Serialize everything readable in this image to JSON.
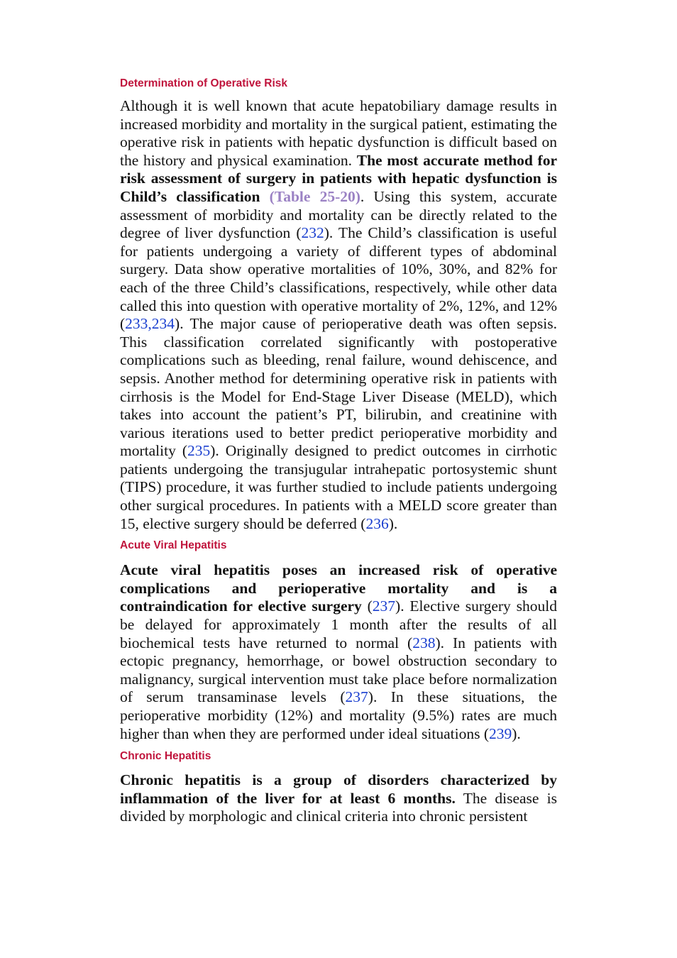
{
  "sections": [
    {
      "heading": "Determination of Operative Risk",
      "p1": "Although it is well known that acute hepatobiliary damage results in increased morbidity and mortality in the surgical patient, estimating the operative risk in patients with hepatic dysfunction is difficult based on the history and physical examination. ",
      "p1_bold": "The most accurate method for risk assessment of surgery in patients with hepatic dysfunction is Child’s classification",
      "table_ref": "(Table 25-20)",
      "p2": ". Using this system, accurate assessment of morbidity and mortality can be directly related to the degree of liver dysfunction (",
      "ref_232": "232",
      "p3": "). The Child’s classification is useful for patients undergoing a variety of different types of abdominal surgery. Data show operative mortalities of 10%, 30%, and 82% for each of the three Child’s classifications, respectively, while other data called this into question with operative mortality of 2%, 12%, and 12% (",
      "ref_233": "233",
      "ref_sep": ",",
      "ref_234": "234",
      "p4": "). The major cause of perioperative death was often sepsis. This classification correlated significantly with postoperative complications such as bleeding, renal failure, wound dehiscence, and sepsis. Another method for determining operative risk in patients with cirrhosis is the Model for End-Stage Liver Disease (MELD), which takes into account the patient’s PT, bilirubin, and creatinine with various iterations used to better predict perioperative morbidity and mortality (",
      "ref_235": "235",
      "p5": "). Originally designed to predict outcomes in cirrhotic patients undergoing the transjugular intrahepatic portosystemic shunt (TIPS) procedure, it was further studied to include patients undergoing other surgical procedures. In patients with a MELD score greater than 15, elective surgery should be deferred (",
      "ref_236": "236",
      "p6": ")."
    },
    {
      "heading": "Acute Viral Hepatitis",
      "bold": "Acute viral hepatitis poses an increased risk of operative complications and perioperative mortality and is a contraindication for elective surgery",
      "p1": " (",
      "ref_237a": "237",
      "p2": "). Elective surgery should be delayed for approximately 1 month after the results of all biochemical tests have returned to normal (",
      "ref_238": "238",
      "p3": "). In patients with ectopic pregnancy, hemorrhage, or bowel obstruction secondary to malignancy, surgical intervention must take place before normalization of serum transaminase levels (",
      "ref_237b": "237",
      "p4": "). In these situations, the perioperative morbidity (12%) and mortality (9.5%) rates are much higher than when they are performed under ideal situations (",
      "ref_239": "239",
      "p5": ")."
    },
    {
      "heading": "Chronic Hepatitis",
      "bold": "Chronic hepatitis is a group of disorders characterized by inflammation of the liver for at least 6 months.",
      "p1": " The disease is divided by morphologic and clinical criteria into chronic persistent"
    }
  ],
  "colors": {
    "heading": "#c0143c",
    "reference_link": "#1a3fcf",
    "table_reference": "#9b82c4",
    "body_text": "#111111"
  }
}
